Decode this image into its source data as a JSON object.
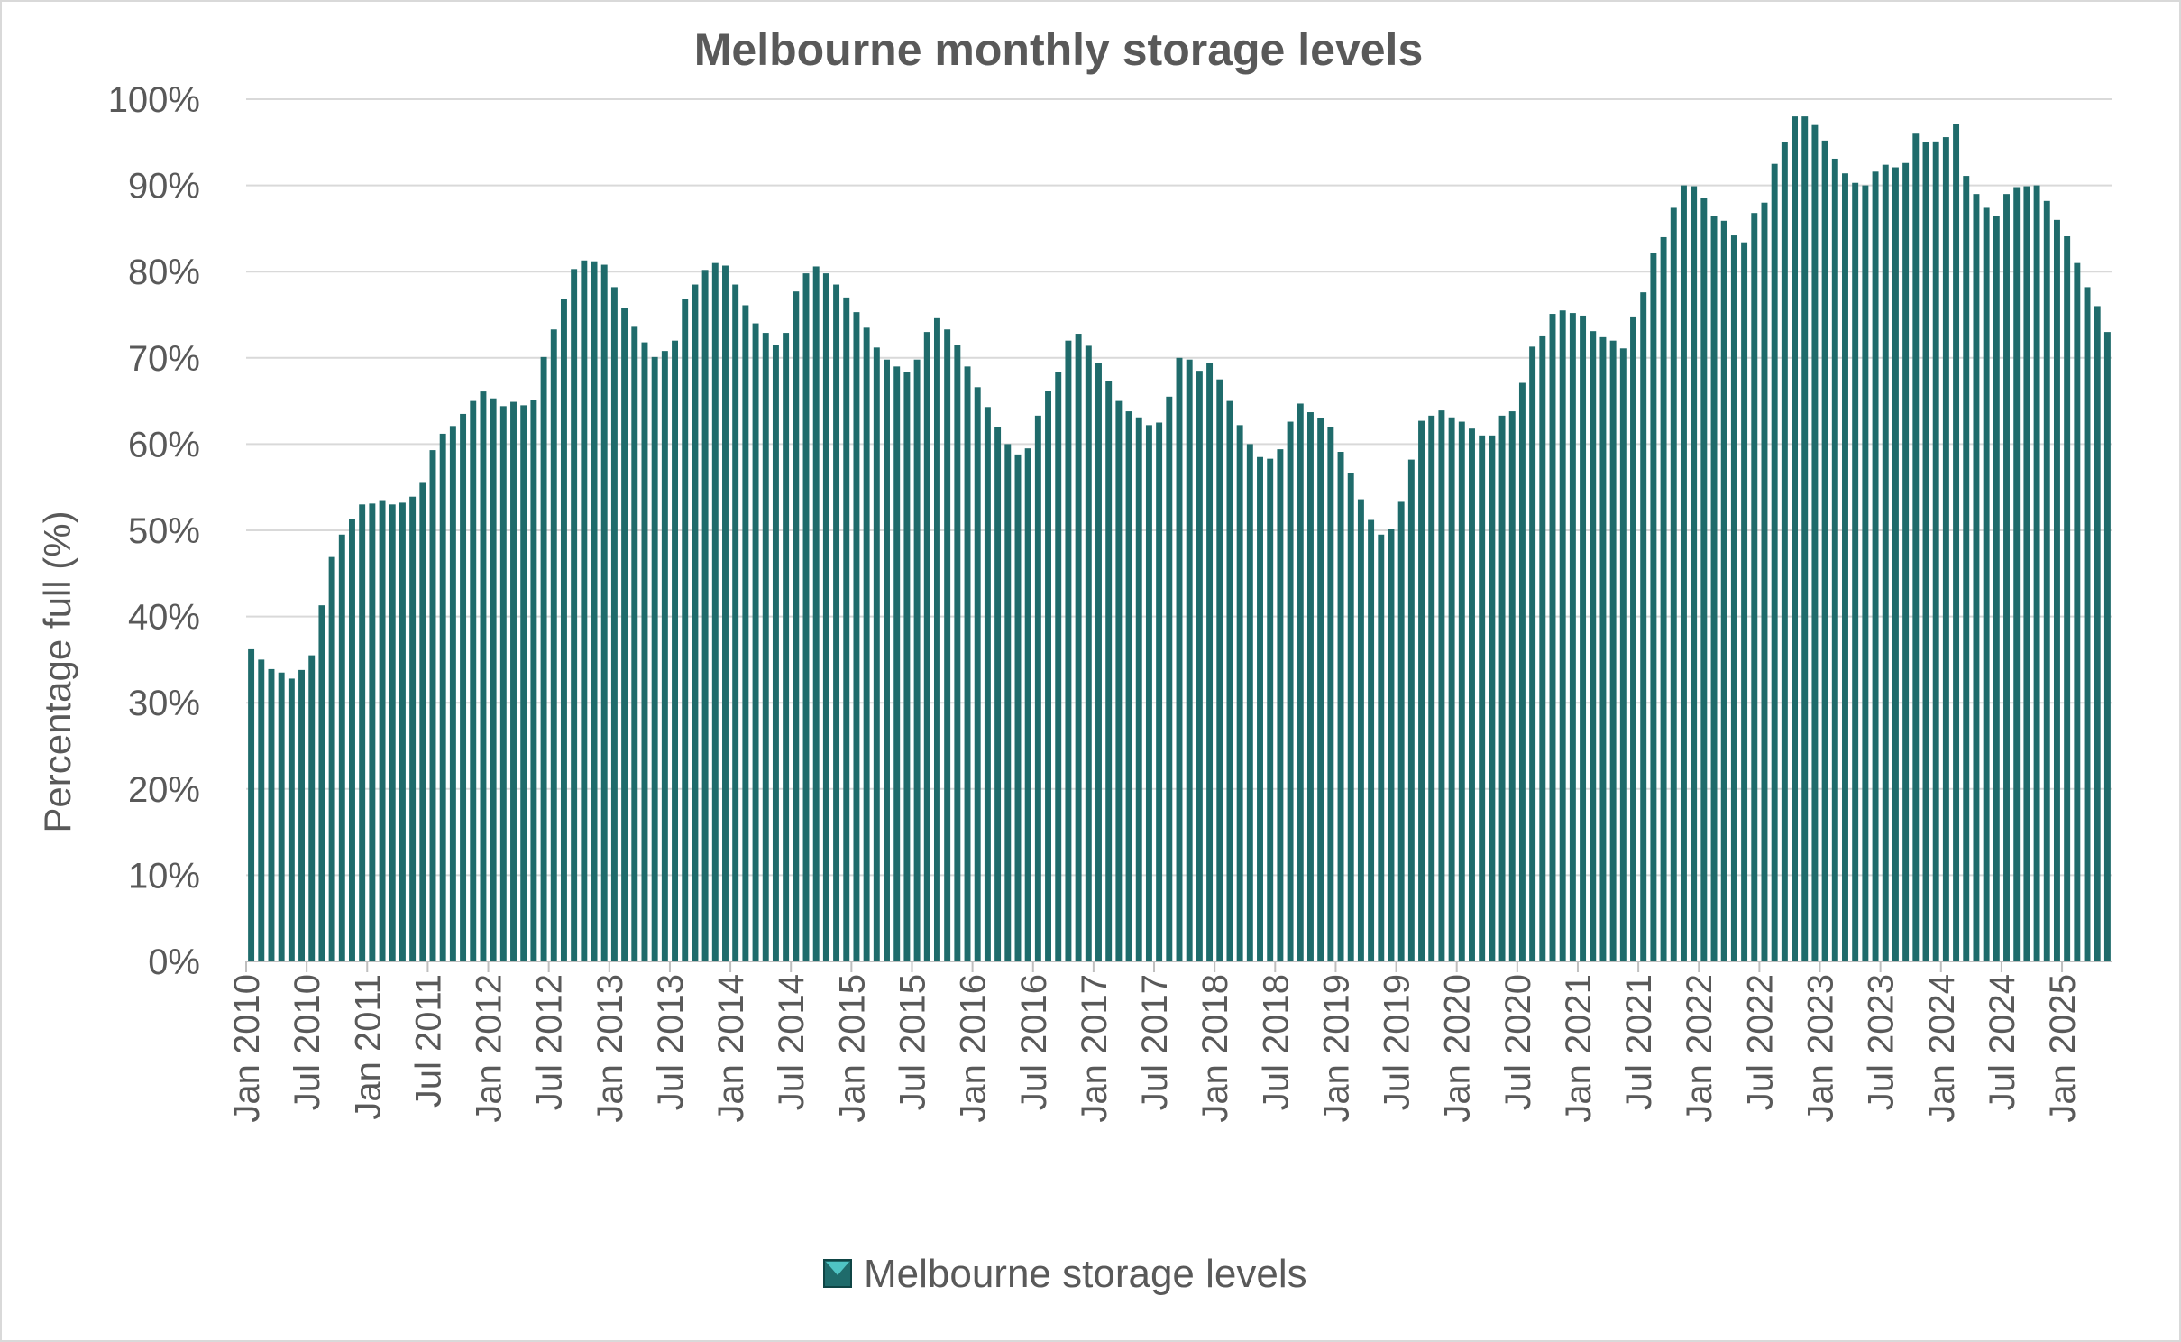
{
  "chart_data": {
    "type": "bar",
    "title": "Melbourne monthly storage levels",
    "ylabel": "Percentage full (%)",
    "xlabel": "",
    "ylim": [
      0,
      100
    ],
    "yticks": [
      "0%",
      "10%",
      "20%",
      "30%",
      "40%",
      "50%",
      "60%",
      "70%",
      "80%",
      "90%",
      "100%"
    ],
    "xticks": [
      "Jan 2010",
      "Jul 2010",
      "Jan 2011",
      "Jul 2011",
      "Jan 2012",
      "Jul 2012",
      "Jan 2013",
      "Jul 2013",
      "Jan 2014",
      "Jul 2014",
      "Jan 2015",
      "Jul 2015",
      "Jan 2016",
      "Jul 2016",
      "Jan 2017",
      "Jul 2017",
      "Jan 2018",
      "Jul 2018",
      "Jan 2019",
      "Jul 2019",
      "Jan 2020",
      "Jul 2020",
      "Jan 2021",
      "Jul 2021",
      "Jan 2022",
      "Jul 2022",
      "Jan 2023",
      "Jul 2023",
      "Jan 2024",
      "Jul 2024",
      "Jan 2025"
    ],
    "first_month": "Jan 2010",
    "grid": true,
    "legend_position": "bottom",
    "bar_color": "#1f6b6b",
    "series": [
      {
        "name": "Melbourne storage levels",
        "values": [
          36.2,
          35.0,
          33.9,
          33.5,
          32.8,
          33.8,
          35.5,
          41.3,
          46.9,
          49.5,
          51.3,
          53.0,
          53.1,
          53.5,
          53.0,
          53.2,
          53.9,
          55.6,
          59.3,
          61.2,
          62.1,
          63.5,
          65.0,
          66.1,
          65.3,
          64.4,
          64.9,
          64.5,
          65.1,
          70.1,
          73.3,
          76.8,
          80.3,
          81.3,
          81.2,
          80.8,
          78.2,
          75.8,
          73.6,
          71.8,
          70.1,
          70.8,
          72.0,
          76.8,
          78.5,
          80.2,
          81.0,
          80.7,
          78.5,
          76.1,
          74.0,
          72.9,
          71.5,
          72.9,
          77.7,
          79.8,
          80.6,
          79.8,
          78.5,
          77.0,
          75.3,
          73.5,
          71.2,
          69.8,
          69.0,
          68.4,
          69.8,
          73.0,
          74.6,
          73.3,
          71.5,
          69.0,
          66.6,
          64.3,
          62.0,
          60.0,
          58.8,
          59.5,
          63.3,
          66.2,
          68.4,
          72.0,
          72.8,
          71.4,
          69.4,
          67.3,
          65.0,
          63.8,
          63.1,
          62.2,
          62.5,
          65.5,
          70.0,
          69.8,
          68.5,
          69.4,
          67.5,
          65.0,
          62.2,
          60.0,
          58.5,
          58.3,
          59.4,
          62.6,
          64.7,
          63.7,
          63.0,
          62.0,
          59.1,
          56.6,
          53.6,
          51.2,
          49.5,
          50.2,
          53.3,
          58.2,
          62.7,
          63.3,
          63.9,
          63.1,
          62.6,
          61.8,
          61.0,
          61.0,
          63.3,
          63.8,
          67.1,
          71.3,
          72.6,
          75.1,
          75.5,
          75.2,
          74.9,
          73.1,
          72.4,
          72.0,
          71.1,
          74.8,
          77.6,
          82.2,
          84.0,
          87.4,
          90.0,
          89.9,
          88.5,
          86.5,
          85.9,
          84.2,
          83.4,
          86.8,
          88.0,
          92.5,
          95.0,
          98.0,
          98.0,
          97.0,
          95.2,
          93.1,
          91.4,
          90.3,
          90.0,
          91.6,
          92.4,
          92.1,
          92.6,
          96.0,
          95.0,
          95.1,
          95.6,
          97.1,
          91.1,
          89.0,
          87.4,
          86.5,
          89.0,
          89.8,
          89.9,
          90.0,
          88.2,
          86.0,
          84.1,
          81.0,
          78.2,
          76.0,
          73.0
        ]
      }
    ]
  }
}
